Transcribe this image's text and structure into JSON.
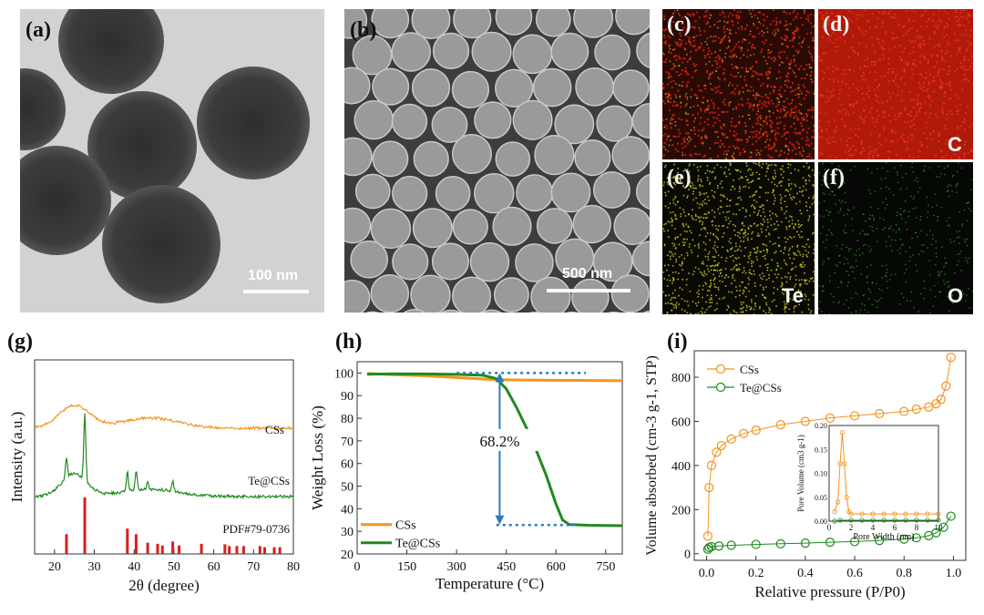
{
  "panels": {
    "a": {
      "label": "(a)",
      "scale_bar": "100 nm"
    },
    "b": {
      "label": "(b)",
      "scale_bar": "500 nm"
    },
    "c": {
      "label": "(c)"
    },
    "d": {
      "label": "(d)",
      "element": "C"
    },
    "e": {
      "label": "(e)",
      "element": "Te"
    },
    "f": {
      "label": "(f)",
      "element": "O"
    },
    "g": {
      "label": "(g)"
    },
    "h": {
      "label": "(h)"
    },
    "i": {
      "label": "(i)"
    }
  },
  "colors": {
    "css": "#f5931e",
    "te_css": "#1f8a1f",
    "ref": "#d62020",
    "arrow": "#2b7bbd",
    "map_c": "#d9200f",
    "map_te": "#c8c81e",
    "map_o": "#3aa828"
  },
  "chart_data": [
    {
      "type": "line",
      "panel": "g",
      "xlabel": "2θ (degree)",
      "ylabel": "Intensity (a.u.)",
      "xlim": [
        15,
        80
      ],
      "xticks": [
        20,
        30,
        40,
        50,
        60,
        70,
        80
      ],
      "series_labels": [
        "CSs",
        "Te@CSs",
        "PDF#79-0736"
      ],
      "reference_peaks": [
        {
          "x": 23.0,
          "h": 0.35
        },
        {
          "x": 27.6,
          "h": 1.0
        },
        {
          "x": 38.3,
          "h": 0.45
        },
        {
          "x": 40.5,
          "h": 0.35
        },
        {
          "x": 43.4,
          "h": 0.2
        },
        {
          "x": 45.9,
          "h": 0.18
        },
        {
          "x": 47.1,
          "h": 0.15
        },
        {
          "x": 49.7,
          "h": 0.22
        },
        {
          "x": 51.3,
          "h": 0.15
        },
        {
          "x": 56.9,
          "h": 0.18
        },
        {
          "x": 62.8,
          "h": 0.17
        },
        {
          "x": 63.9,
          "h": 0.14
        },
        {
          "x": 65.8,
          "h": 0.14
        },
        {
          "x": 67.5,
          "h": 0.14
        },
        {
          "x": 71.6,
          "h": 0.14
        },
        {
          "x": 72.8,
          "h": 0.12
        },
        {
          "x": 75.2,
          "h": 0.12
        },
        {
          "x": 76.6,
          "h": 0.12
        }
      ]
    },
    {
      "type": "line",
      "panel": "h",
      "xlabel": "Temperature (°C)",
      "ylabel": "Weight Loss (%)",
      "xlim": [
        0,
        800
      ],
      "ylim": [
        20,
        105
      ],
      "xticks": [
        0,
        150,
        300,
        450,
        600,
        750
      ],
      "yticks": [
        20,
        30,
        40,
        50,
        60,
        70,
        80,
        90,
        100
      ],
      "annotation": "68.2%",
      "series": [
        {
          "name": "CSs",
          "x": [
            30,
            100,
            200,
            300,
            400,
            450,
            500,
            600,
            700,
            800
          ],
          "y": [
            99.8,
            99.3,
            98.8,
            98.0,
            97.2,
            97.0,
            96.9,
            96.8,
            96.7,
            96.6
          ]
        },
        {
          "name": "Te@CSs",
          "x": [
            30,
            100,
            200,
            300,
            380,
            420,
            450,
            480,
            510,
            540,
            570,
            600,
            620,
            640,
            700,
            800
          ],
          "y": [
            99.5,
            99.6,
            99.6,
            99.4,
            99.0,
            97.5,
            93,
            85,
            76,
            66,
            55,
            42,
            35,
            33,
            32.7,
            32.5
          ]
        }
      ]
    },
    {
      "type": "scatter",
      "panel": "i",
      "xlabel": "Relative pressure (P/P0)",
      "ylabel": "Volume absorbed (cm-3 g-1, STP)",
      "xlim": [
        -0.05,
        1.05
      ],
      "ylim": [
        -30,
        920
      ],
      "xticks": [
        0.0,
        0.2,
        0.4,
        0.6,
        0.8,
        1.0
      ],
      "yticks": [
        0,
        200,
        400,
        600,
        800
      ],
      "series": [
        {
          "name": "CSs",
          "x": [
            0.005,
            0.01,
            0.02,
            0.04,
            0.06,
            0.1,
            0.15,
            0.2,
            0.3,
            0.4,
            0.5,
            0.6,
            0.7,
            0.8,
            0.85,
            0.9,
            0.93,
            0.95,
            0.97,
            0.99
          ],
          "y": [
            80,
            300,
            400,
            460,
            490,
            520,
            545,
            560,
            585,
            600,
            615,
            625,
            635,
            645,
            655,
            665,
            680,
            700,
            760,
            890
          ]
        },
        {
          "name": "Te@CSs",
          "x": [
            0.005,
            0.01,
            0.02,
            0.05,
            0.1,
            0.2,
            0.3,
            0.4,
            0.5,
            0.6,
            0.7,
            0.8,
            0.85,
            0.9,
            0.93,
            0.96,
            0.99
          ],
          "y": [
            20,
            28,
            32,
            35,
            38,
            42,
            45,
            48,
            52,
            55,
            60,
            66,
            72,
            82,
            95,
            120,
            170
          ]
        }
      ],
      "inset": {
        "xlabel": "Pore Width (nm)",
        "ylabel": "Pore Volume (cm3 g-1)",
        "xlim": [
          0,
          10
        ],
        "ylim": [
          0,
          0.2
        ],
        "xticks": [
          0,
          2,
          4,
          6,
          8,
          10
        ],
        "yticks": [
          0.0,
          0.05,
          0.1,
          0.15,
          0.2
        ],
        "series": [
          {
            "name": "CSs",
            "x": [
              0.5,
              0.8,
              1.0,
              1.2,
              1.4,
              1.6,
              1.8,
              2.0,
              3,
              4,
              5,
              6,
              7,
              8,
              9,
              10
            ],
            "y": [
              0.02,
              0.04,
              0.12,
              0.185,
              0.12,
              0.05,
              0.02,
              0.015,
              0.015,
              0.015,
              0.015,
              0.015,
              0.015,
              0.015,
              0.015,
              0.015
            ]
          },
          {
            "name": "Te@CSs",
            "x": [
              0.5,
              1,
              2,
              3,
              4,
              5,
              6,
              7,
              8,
              9,
              10
            ],
            "y": [
              0.0,
              0.002,
              0.002,
              0.002,
              0.002,
              0.002,
              0.002,
              0.002,
              0.002,
              0.002,
              0.002
            ]
          }
        ]
      }
    }
  ]
}
